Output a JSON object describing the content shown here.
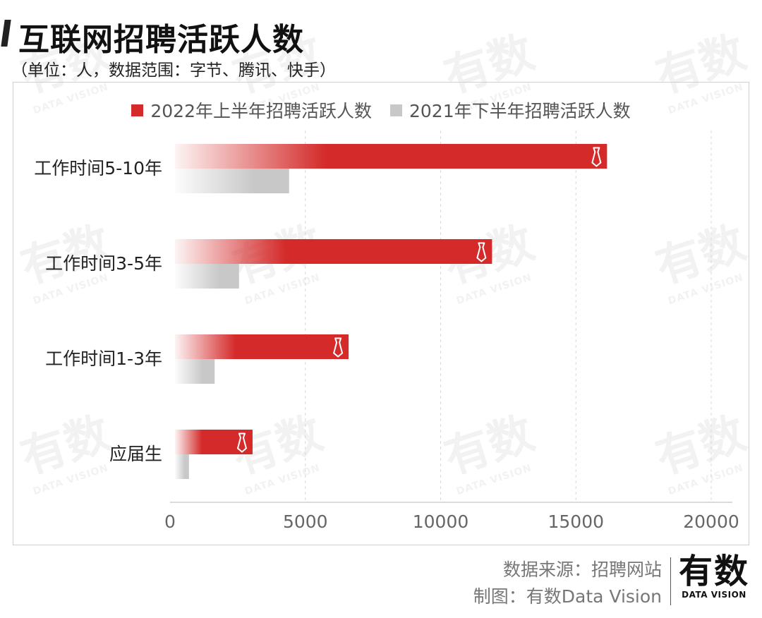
{
  "header": {
    "title": "互联网招聘活跃人数",
    "subtitle": "（单位：人，数据范围：字节、腾讯、快手）"
  },
  "colors": {
    "series_2022": "#d42a2a",
    "series_2021": "#c8c8c8"
  },
  "chart_data": {
    "type": "bar",
    "orientation": "horizontal",
    "categories": [
      "工作时间5-10年",
      "工作时间3-5年",
      "工作时间1-3年",
      "应届生"
    ],
    "series": [
      {
        "name": "2022年上半年招聘活跃人数",
        "values": [
          16150,
          11900,
          6600,
          3050
        ],
        "color": "#d42a2a"
      },
      {
        "name": "2021年下半年招聘活跃人数",
        "values": [
          4400,
          2550,
          1650,
          700
        ],
        "color": "#c8c8c8"
      }
    ],
    "xlim": [
      0,
      20000
    ],
    "x_ticks": [
      "0",
      "5000",
      "10000",
      "15000",
      "20000"
    ],
    "grid": true,
    "legend_position": "top-center",
    "bar_marker_icon": "necktie-icon"
  },
  "footer": {
    "source": "数据来源：招聘网站",
    "made_by": "制图：有数Data Vision"
  },
  "brand": {
    "name_cn": "有数",
    "name_en": "DATA VISION"
  },
  "watermark": {
    "text_cn": "有数",
    "text_en": "DATA VISION"
  }
}
